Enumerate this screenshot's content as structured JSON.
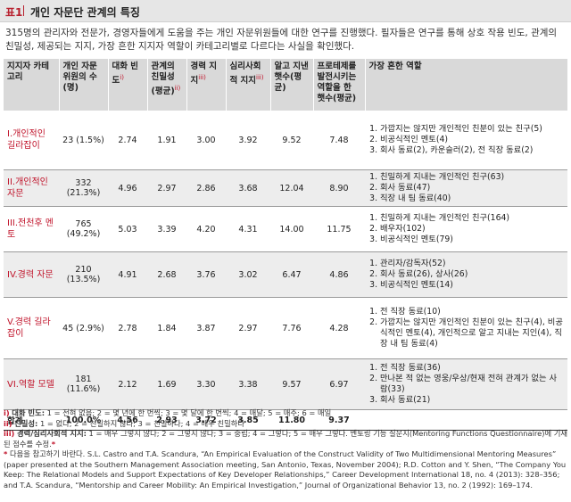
{
  "header": {
    "tag": "표1",
    "title": "개인 자문단 관계의 특징"
  },
  "intro": "315명의 관리자와 전문가, 경영자들에게 도움을 주는 개인 자문위원들에 대한 연구를 진행했다. 필자들은 연구를 통해 상호 작용 빈도, 관계의 친밀성, 제공되는 지지, 가장 흔한 지지자 역할이 카테고리별로 다르다는 사실을 확인했다.",
  "table": {
    "headers": {
      "category": "지지자 카테고리",
      "count": "개인 자문 위원의 수(명)",
      "freq": "대화 빈도",
      "freq_sup": "i)",
      "intimacy": "관계의 친밀성 (평균)",
      "intimacy_sup": "ii)",
      "career": "경력 지지",
      "career_sup": "iii)",
      "psych": "심리사회적 지지",
      "psych_sup": "iii)",
      "years": "알고 지낸 햇수(평균)",
      "prot": "프로테제를 발전시키는 역할을 한 햇수(평균)",
      "roles": "가장 흔한 역할"
    },
    "rows": [
      {
        "category": "I.개인적인 길라잡이",
        "count": "23 (1.5%)",
        "freq": "2.74",
        "intimacy": "1.91",
        "career": "3.00",
        "psych": "3.92",
        "years": "9.52",
        "prot": "7.48",
        "roles": [
          "가깝지는 않지만 개인적인 친분이 있는 친구(5)",
          "비공식적인 멘토(4)",
          "회사 동료(2), 카운슬러(2), 전 직장 동료(2)"
        ]
      },
      {
        "category": "II.개인적인 자문",
        "count": "332 (21.3%)",
        "freq": "4.96",
        "intimacy": "2.97",
        "career": "2.86",
        "psych": "3.68",
        "years": "12.04",
        "prot": "8.90",
        "roles": [
          "친밀하게 지내는 개인적인 친구(63)",
          "회사 동료(47)",
          "직장 내 팀 동료(40)"
        ]
      },
      {
        "category": "III.전천후 멘토",
        "count": "765 (49.2%)",
        "freq": "5.03",
        "intimacy": "3.39",
        "career": "4.20",
        "psych": "4.31",
        "years": "14.00",
        "prot": "11.75",
        "roles": [
          "친밀하게 지내는 개인적인 친구(164)",
          "배우자(102)",
          "비공식적인 멘토(79)"
        ]
      },
      {
        "category": "IV.경력 자문",
        "count": "210 (13.5%)",
        "freq": "4.91",
        "intimacy": "2.68",
        "career": "3.76",
        "psych": "3.02",
        "years": "6.47",
        "prot": "4.86",
        "roles": [
          "관리자/감독자(52)",
          "회사 동료(26), 상사(26)",
          "비공식적인 멘토(14)"
        ]
      },
      {
        "category": "V.경력 길라잡이",
        "count": "45 (2.9%)",
        "freq": "2.78",
        "intimacy": "1.84",
        "career": "3.87",
        "psych": "2.97",
        "years": "7.76",
        "prot": "4.28",
        "roles": [
          "전 직장 동료(10)",
          "가깝지는 않지만 개인적인 친분이 있는 친구(4), 비공식적인 멘토(4), 개인적으로 알고 지내는 지인(4), 직장 내 팀 동료(4)"
        ]
      },
      {
        "category": "VI.역할 모델",
        "count": "181 (11.6%)",
        "freq": "2.12",
        "intimacy": "1.69",
        "career": "3.30",
        "psych": "3.38",
        "years": "9.57",
        "prot": "6.97",
        "roles": [
          "전 직장 동료(36)",
          "만나본 적 없는 영웅/우상/현재 전혀 관계가 없는 사람(33)",
          "회사 동료(21)"
        ]
      }
    ],
    "total": {
      "label": "합계",
      "count": "100.0%",
      "freq": "4.56",
      "intimacy": "2.93",
      "career": "3.72",
      "psych": "3.85",
      "years": "11.80",
      "prot": "9.37"
    }
  },
  "notes": {
    "n1_mark": "i)",
    "n1_label": "대화 빈도:",
    "n1_text": " 1 = 전혀 없음; 2 = 몇 년에 한 번씩; 3 = 몇 달에 한 번씩; 4 = 매달; 5 = 매주; 6 = 매일",
    "n2_mark": "ii)",
    "n2_label": "친밀성:",
    "n2_text": " 1 = 없다; 2 = 친밀하지 않다; 3 = 친밀하다; 4 = 매우 친밀하다",
    "n3_mark": "iii)",
    "n3_label": "경력/심리사회적 지지:",
    "n3_text": " 1 = 매우 그렇지 않다; 2 = 그렇지 않다; 3 = 중립; 4 = 그렇다; 5 = 매우 그렇다. 멘토링 기능 질문지(Mentoring Functions Questionnaire)에 기재된 점수를 수정.",
    "n3_star": "*",
    "n4_mark": "*",
    "n4_text": " 다음을 참고하기 바란다. S.L. Castro and T.A. Scandura, “An Empirical Evaluation of the Construct Validity of Two Multidimensional Mentoring Measures” (paper presented at the Southern Management Association meeting, San Antonio, Texas, November 2004); R.D. Cotton and Y. Shen, “The Company You Keep: The Relational Models and Support Expectations of Key Developer Relationships,” Career Development International 18, no. 4 (2013): 328–356; and T.A. Scandura, “Mentorship and Career Mobility: An Empirical Investigation,” Journal of Organizational Behavior 13, no. 2 (1992): 169–174."
  }
}
